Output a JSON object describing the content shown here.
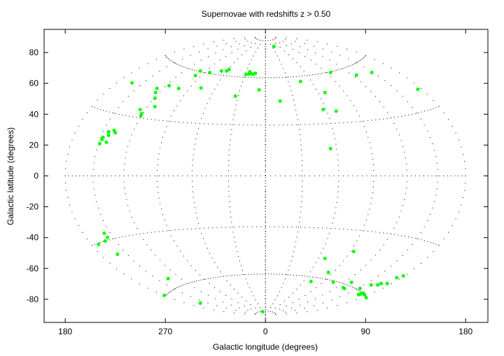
{
  "chart_data": {
    "type": "scatter",
    "title": "Supernovae with redshifts z > 0.50",
    "x_label": "Galactic longitude (degrees)",
    "y_label": "Galactic latitude (degrees)",
    "xlim": [
      -199,
      200
    ],
    "ylim": [
      -95,
      95
    ],
    "xticks": [
      180,
      {
        "value": 90,
        "label": "90"
      },
      0,
      {
        "value": -90,
        "label": "270"
      },
      {
        "value": -180,
        "label": "180"
      }
    ],
    "yticks": [
      -80,
      -60,
      -40,
      -20,
      0,
      20,
      40,
      60,
      80
    ],
    "color": "#00ff00",
    "series": [
      {
        "name": "supernovae",
        "color": "#00ff00",
        "x": [
          7.6,
          -58.5,
          -50,
          -39.6,
          -35,
          -32.7,
          -15,
          -14,
          -12,
          -11,
          -9,
          -17.6,
          -57.9,
          -86.6,
          -78,
          -97.5,
          -98.8,
          -99.4,
          -99.4,
          -112.6,
          -111.4,
          -112,
          -120,
          -63,
          -27,
          -5.7,
          13.2,
          31.5,
          58.5,
          81.8,
          95.6,
          137,
          53.5,
          52,
          63.6,
          58.5,
          -136,
          -135,
          -141,
          -141,
          -146,
          -147,
          -143,
          -149,
          -145,
          -142,
          -144,
          -150,
          -133,
          -87.5,
          -91,
          -58.5,
          -2.5,
          41,
          53.5,
          56.6,
          61,
          70,
          71,
          77.4,
          79.3,
          83.7,
          85.5,
          85,
          88,
          89,
          90.6,
          95,
          101,
          104,
          109.5,
          118,
          124
        ],
        "values": [
          83.9,
          68,
          67,
          68,
          68,
          69,
          66,
          67.5,
          66,
          66,
          66.5,
          65.7,
          57,
          58.5,
          56.7,
          56.7,
          54,
          50.3,
          44.9,
          43,
          40.3,
          39,
          60.3,
          65,
          51.7,
          55.8,
          48.5,
          61.2,
          67,
          65.3,
          67,
          56.2,
          54,
          43,
          42,
          17.7,
          29.5,
          28,
          28.6,
          26.3,
          25,
          23.6,
          21.8,
          20.9,
          -37.2,
          -39.9,
          -42.2,
          -44.4,
          -50.8,
          -66.6,
          -77.5,
          -82.5,
          -88,
          -68.5,
          -53.5,
          -62.6,
          -68.9,
          -72.5,
          -73,
          -69,
          -49,
          -77,
          -76.6,
          -73,
          -76,
          -77,
          -79,
          -70.7,
          -70.7,
          -69.8,
          -69.8,
          -66,
          -64.8
        ]
      }
    ]
  }
}
